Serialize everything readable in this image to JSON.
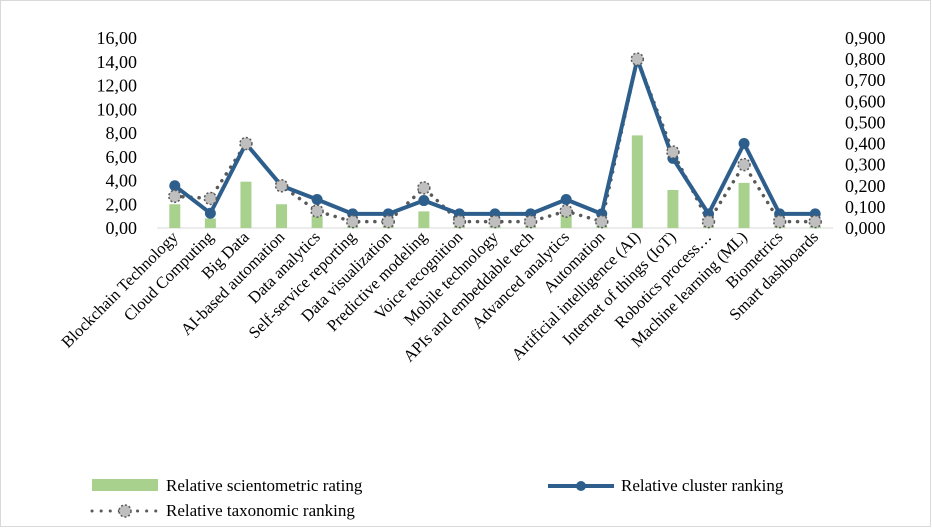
{
  "chart_data": {
    "type": "bar",
    "categories": [
      "Blockchain Technology",
      "Cloud Computing",
      "Big Data",
      "AI-based automation",
      "Data analytics",
      "Self-service reporting",
      "Data visualization",
      "Predictive modeling",
      "Voice recognition",
      "Mobile technology",
      "APIs and embeddable tech",
      "Advanced analytics",
      "Automation",
      "Artificial intelligence (AI)",
      "Internet of things (IoT)",
      "Robotics process…",
      "Machine learning (ML)",
      "Biometrics",
      "Smart dashboards"
    ],
    "y_left": {
      "ylim": [
        0,
        16
      ],
      "ticks": [
        "0,00",
        "2,00",
        "4,00",
        "6,00",
        "8,00",
        "10,00",
        "12,00",
        "14,00",
        "16,00"
      ]
    },
    "y_right": {
      "ylim": [
        0,
        0.9
      ],
      "ticks": [
        "0,000",
        "0,100",
        "0,200",
        "0,300",
        "0,400",
        "0,500",
        "0,600",
        "0,700",
        "0,800",
        "0,900"
      ]
    },
    "series": [
      {
        "name": "Relative scientometric rating",
        "kind": "bar",
        "axis": "left",
        "color": "#a9d18e",
        "values": [
          2.0,
          0.8,
          3.9,
          2.0,
          1.0,
          0.2,
          0.2,
          1.4,
          0.2,
          0.2,
          0.2,
          1.3,
          0.2,
          7.8,
          3.2,
          0.2,
          3.8,
          0.2,
          0.2
        ]
      },
      {
        "name": "Relative cluster ranking",
        "kind": "line",
        "axis": "right",
        "color": "#2e5f8c",
        "values": [
          0.2,
          0.07,
          0.4,
          0.2,
          0.135,
          0.067,
          0.067,
          0.13,
          0.067,
          0.067,
          0.067,
          0.135,
          0.067,
          0.8,
          0.33,
          0.067,
          0.4,
          0.067,
          0.067
        ]
      },
      {
        "name": "Relative taxonomic ranking",
        "kind": "line",
        "axis": "right",
        "color": "#595959",
        "values": [
          0.15,
          0.14,
          0.4,
          0.2,
          0.08,
          0.03,
          0.03,
          0.19,
          0.03,
          0.03,
          0.03,
          0.08,
          0.03,
          0.8,
          0.36,
          0.03,
          0.3,
          0.03,
          0.03
        ]
      }
    ],
    "title": "",
    "xlabel": "",
    "ylabel": "",
    "grid": false,
    "legend_position": "bottom"
  }
}
